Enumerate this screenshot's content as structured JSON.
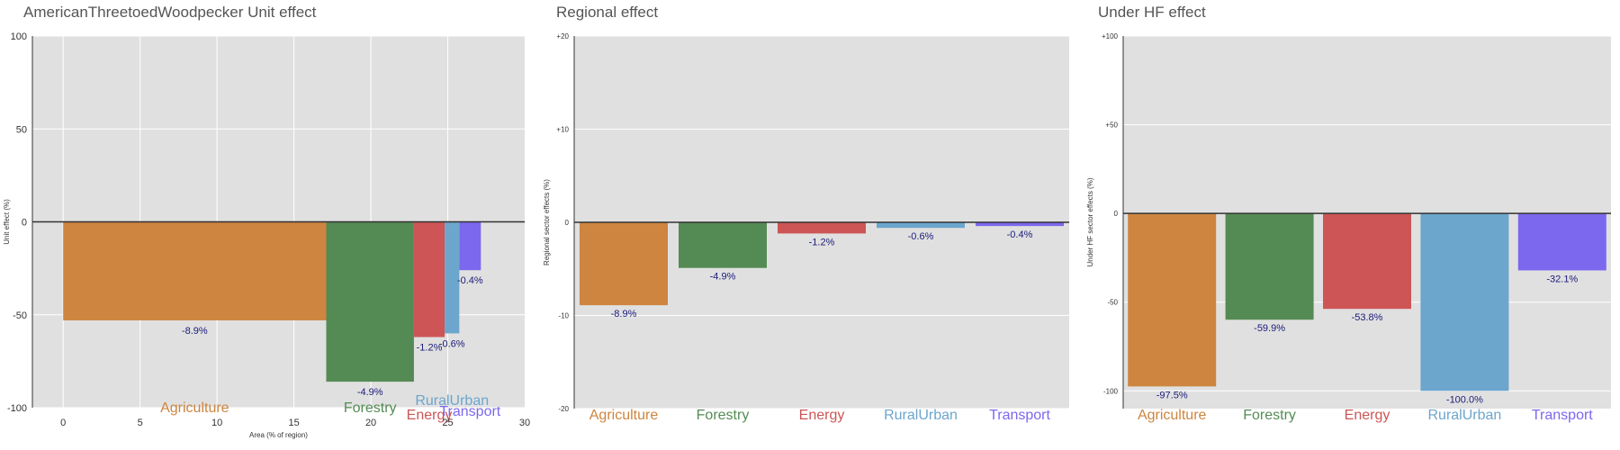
{
  "chart_data": [
    {
      "type": "bar",
      "title": "AmericanThreetoedWoodpecker Unit effect",
      "xlabel": "Area (% of region)",
      "ylabel": "Unit effect (%)",
      "xlim": [
        -2,
        30
      ],
      "ylim": [
        -100,
        100
      ],
      "x_ticks": [
        "0",
        "5",
        "10",
        "15",
        "20",
        "25",
        "30"
      ],
      "y_ticks": [
        "100",
        "50",
        "0",
        "-50",
        "-100"
      ],
      "grid": true,
      "categories": [
        "Agriculture",
        "Forestry",
        "Energy",
        "RuralUrban",
        "Transport"
      ],
      "colors": [
        "#cd853f",
        "#548b54",
        "#cd5555",
        "#6ca6cd",
        "#7b68ee"
      ],
      "widths": [
        17.1,
        5.7,
        2.0,
        0.95,
        1.4
      ],
      "values": [
        -53,
        -86,
        -62,
        -60,
        -26
      ],
      "bar_labels": [
        "-8.9%",
        "-4.9%",
        "-1.2%",
        "-0.6%",
        "-0.4%"
      ]
    },
    {
      "type": "bar",
      "title": "Regional effect",
      "xlabel": "",
      "ylabel": "Regional sector effects (%)",
      "ylim": [
        -20,
        20
      ],
      "y_ticks": [
        "+20",
        "+10",
        "0",
        "-10",
        "-20"
      ],
      "grid": true,
      "categories": [
        "Agriculture",
        "Forestry",
        "Energy",
        "RuralUrban",
        "Transport"
      ],
      "colors": [
        "#cd853f",
        "#548b54",
        "#cd5555",
        "#6ca6cd",
        "#7b68ee"
      ],
      "values": [
        -8.9,
        -4.9,
        -1.2,
        -0.6,
        -0.4
      ],
      "bar_labels": [
        "-8.9%",
        "-4.9%",
        "-1.2%",
        "-0.6%",
        "-0.4%"
      ]
    },
    {
      "type": "bar",
      "title": "Under HF effect",
      "xlabel": "",
      "ylabel": "Under HF sector effects (%)",
      "ylim": [
        -110,
        100
      ],
      "y_ticks": [
        "+100",
        "+50",
        "0",
        "-50",
        "-100"
      ],
      "grid": true,
      "categories": [
        "Agriculture",
        "Forestry",
        "Energy",
        "RuralUrban",
        "Transport"
      ],
      "colors": [
        "#cd853f",
        "#548b54",
        "#cd5555",
        "#6ca6cd",
        "#7b68ee"
      ],
      "values": [
        -97.5,
        -59.9,
        -53.8,
        -100.0,
        -32.1
      ],
      "bar_labels": [
        "-97.5%",
        "-59.9%",
        "-53.8%",
        "-100.0%",
        "-32.1%"
      ]
    }
  ]
}
